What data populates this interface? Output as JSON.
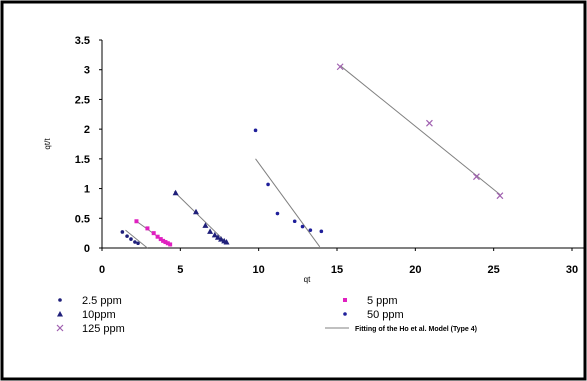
{
  "chart_data": {
    "type": "scatter",
    "title": "",
    "xlabel": "qt",
    "ylabel": "qt/t",
    "xlim": [
      0,
      30
    ],
    "ylim": [
      0,
      3.5
    ],
    "x_ticks": [
      "0",
      "5",
      "10",
      "15",
      "20",
      "25",
      "30"
    ],
    "y_ticks": [
      "0",
      "0.5",
      "1",
      "1.5",
      "2",
      "2.5",
      "3",
      "3.5"
    ],
    "grid": false,
    "legend_position": "bottom",
    "series": [
      {
        "name": "2.5 ppm",
        "marker": "dot",
        "color": "#1f1f7a",
        "points": [
          [
            1.3,
            0.27
          ],
          [
            1.6,
            0.2
          ],
          [
            1.85,
            0.15
          ],
          [
            2.1,
            0.1
          ],
          [
            2.3,
            0.08
          ]
        ]
      },
      {
        "name": "5 ppm",
        "marker": "square",
        "color": "#e020c0",
        "points": [
          [
            2.2,
            0.45
          ],
          [
            2.9,
            0.33
          ],
          [
            3.3,
            0.25
          ],
          [
            3.55,
            0.19
          ],
          [
            3.75,
            0.15
          ],
          [
            3.9,
            0.12
          ],
          [
            4.05,
            0.1
          ],
          [
            4.2,
            0.08
          ],
          [
            4.35,
            0.06
          ]
        ]
      },
      {
        "name": "10ppm",
        "marker": "triangle",
        "color": "#1f1f7a",
        "points": [
          [
            4.7,
            0.93
          ],
          [
            6.0,
            0.61
          ],
          [
            6.6,
            0.38
          ],
          [
            6.9,
            0.28
          ],
          [
            7.2,
            0.22
          ],
          [
            7.4,
            0.18
          ],
          [
            7.6,
            0.15
          ],
          [
            7.8,
            0.12
          ],
          [
            7.95,
            0.1
          ]
        ]
      },
      {
        "name": "50 ppm",
        "marker": "dot",
        "color": "#1f1f9a",
        "points": [
          [
            9.8,
            1.98
          ],
          [
            10.6,
            1.07
          ],
          [
            11.2,
            0.58
          ],
          [
            12.3,
            0.45
          ],
          [
            12.8,
            0.36
          ],
          [
            13.3,
            0.3
          ],
          [
            14.0,
            0.28
          ]
        ]
      },
      {
        "name": "125 ppm",
        "marker": "x",
        "color": "#a060b0",
        "points": [
          [
            15.2,
            3.05
          ],
          [
            20.9,
            2.1
          ],
          [
            23.9,
            1.2
          ],
          [
            25.4,
            0.88
          ]
        ]
      }
    ],
    "fit_lines": [
      {
        "name": "Fitting of the Ho et al. Model (Type 4)",
        "color": "#808080",
        "points": [
          [
            1.5,
            0.3
          ],
          [
            2.9,
            0.0
          ]
        ]
      },
      {
        "name": "Fitting of the Ho et al. Model (Type 4)",
        "color": "#808080",
        "points": [
          [
            2.2,
            0.45
          ],
          [
            4.4,
            0.03
          ]
        ]
      },
      {
        "name": "Fitting of the Ho et al. Model (Type 4)",
        "color": "#808080",
        "points": [
          [
            4.6,
            0.95
          ],
          [
            7.9,
            0.1
          ]
        ]
      },
      {
        "name": "Fitting of the Ho et al. Model (Type 4)",
        "color": "#808080",
        "points": [
          [
            9.8,
            1.5
          ],
          [
            13.9,
            0.02
          ]
        ]
      },
      {
        "name": "Fitting of the Ho et al. Model (Type 4)",
        "color": "#808080",
        "points": [
          [
            15.2,
            3.07
          ],
          [
            25.4,
            0.9
          ]
        ]
      }
    ],
    "legend": [
      {
        "label": "2.5 ppm",
        "marker": "dot",
        "color": "#1f1f7a"
      },
      {
        "label": "5 ppm",
        "marker": "square",
        "color": "#e020c0"
      },
      {
        "label": "10ppm",
        "marker": "triangle",
        "color": "#1f1f7a"
      },
      {
        "label": "50 ppm",
        "marker": "dot",
        "color": "#1f1f9a"
      },
      {
        "label": "125 ppm",
        "marker": "x",
        "color": "#a060b0"
      },
      {
        "label": "Fitting of the Ho et al. Model (Type 4)",
        "marker": "line",
        "color": "#808080"
      }
    ]
  }
}
